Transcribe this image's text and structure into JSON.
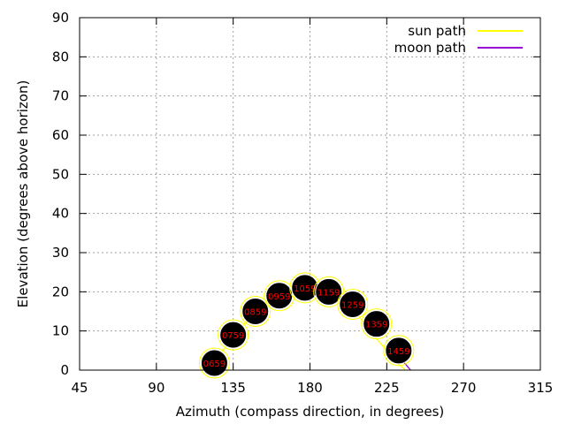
{
  "chart_data": {
    "type": "line",
    "xlabel": "Azimuth (compass direction, in degrees)",
    "ylabel": "Elevation (degrees above horizon)",
    "xlim": [
      45,
      315
    ],
    "ylim": [
      0,
      90
    ],
    "xticks": [
      "45",
      "90",
      "135",
      "180",
      "225",
      "270",
      "315"
    ],
    "yticks": [
      "0",
      "10",
      "20",
      "30",
      "40",
      "50",
      "60",
      "70",
      "80",
      "90"
    ],
    "grid": true,
    "legend_position": "top-right",
    "series": [
      {
        "name": "sun path",
        "color": "#ffff00",
        "x": [
          120,
          124,
          129,
          136,
          143,
          150,
          158,
          165,
          172,
          178,
          184,
          191,
          198,
          205,
          212,
          219,
          226,
          232,
          236
        ],
        "y": [
          0,
          2,
          5,
          9,
          12.5,
          15.5,
          18,
          20,
          21.3,
          21.8,
          21.6,
          20.5,
          18.5,
          15.5,
          12,
          8,
          4.5,
          1.5,
          0
        ]
      },
      {
        "name": "moon path",
        "color": "#9400d3",
        "x": [
          235,
          237,
          239
        ],
        "y": [
          2,
          1,
          0
        ]
      }
    ],
    "hour_markers": [
      {
        "label": "0659",
        "x": 124,
        "y": 1.8
      },
      {
        "label": "0759",
        "x": 135,
        "y": 9
      },
      {
        "label": "0859",
        "x": 148,
        "y": 15
      },
      {
        "label": "0959",
        "x": 162,
        "y": 19
      },
      {
        "label": "1059",
        "x": 177,
        "y": 21
      },
      {
        "label": "1159",
        "x": 191,
        "y": 20
      },
      {
        "label": "1259",
        "x": 205,
        "y": 16.8
      },
      {
        "label": "1359",
        "x": 219,
        "y": 11.8
      },
      {
        "label": "1459",
        "x": 232,
        "y": 5
      }
    ]
  }
}
